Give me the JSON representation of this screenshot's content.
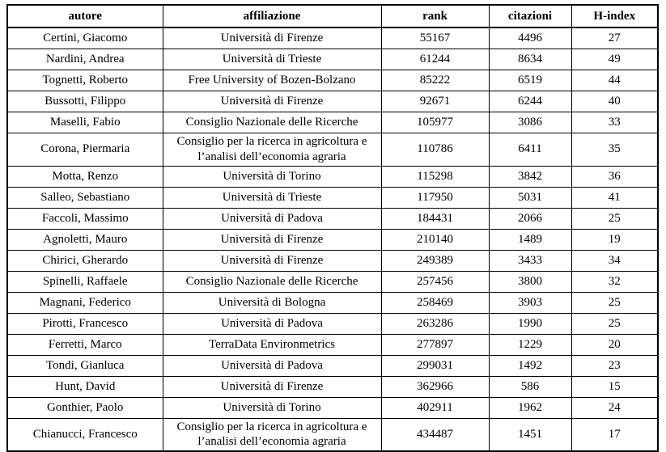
{
  "page": {
    "background_color": "#ffffff",
    "border_color": "#000000",
    "text_color": "#000000"
  },
  "chart_data": {
    "type": "table",
    "title": "",
    "columns": [
      "autore",
      "affiliazione",
      "rank",
      "citazioni",
      "H-index"
    ],
    "rows": [
      [
        "Certini, Giacomo",
        "Università di Firenze",
        55167,
        4496,
        27
      ],
      [
        "Nardini, Andrea",
        "Università di Trieste",
        61244,
        8634,
        49
      ],
      [
        "Tognetti, Roberto",
        "Free University of Bozen-Bolzano",
        85222,
        6519,
        44
      ],
      [
        "Bussotti, Filippo",
        "Università di Firenze",
        92671,
        6244,
        40
      ],
      [
        "Maselli, Fabio",
        "Consiglio Nazionale delle Ricerche",
        105977,
        3086,
        33
      ],
      [
        "Corona, Piermaria",
        "Consiglio per la ricerca in agricoltura e l’analisi dell’economia agraria",
        110786,
        6411,
        35
      ],
      [
        "Motta, Renzo",
        "Università di Torino",
        115298,
        3842,
        36
      ],
      [
        "Salleo, Sebastiano",
        "Università di Trieste",
        117950,
        5031,
        41
      ],
      [
        "Faccoli, Massimo",
        "Università di Padova",
        184431,
        2066,
        25
      ],
      [
        "Agnoletti, Mauro",
        "Università di Firenze",
        210140,
        1489,
        19
      ],
      [
        "Chirici, Gherardo",
        "Università di Firenze",
        249389,
        3433,
        34
      ],
      [
        "Spinelli, Raffaele",
        "Consiglio Nazionale delle Ricerche",
        257456,
        3800,
        32
      ],
      [
        "Magnani, Federico",
        "Università di Bologna",
        258469,
        3903,
        25
      ],
      [
        "Pirotti, Francesco",
        "Università di Padova",
        263286,
        1990,
        25
      ],
      [
        "Ferretti, Marco",
        "TerraData Environmetrics",
        277897,
        1229,
        20
      ],
      [
        "Tondi, Gianluca",
        "Università di Padova",
        299031,
        1492,
        23
      ],
      [
        "Hunt, David",
        "Università di Firenze",
        362966,
        586,
        15
      ],
      [
        "Gonthier, Paolo",
        "Università di Torino",
        402911,
        1962,
        24
      ],
      [
        "Chianucci, Francesco",
        "Consiglio per la ricerca in agricoltura e l’analisi dell’economia agraria",
        434487,
        1451,
        17
      ]
    ]
  }
}
